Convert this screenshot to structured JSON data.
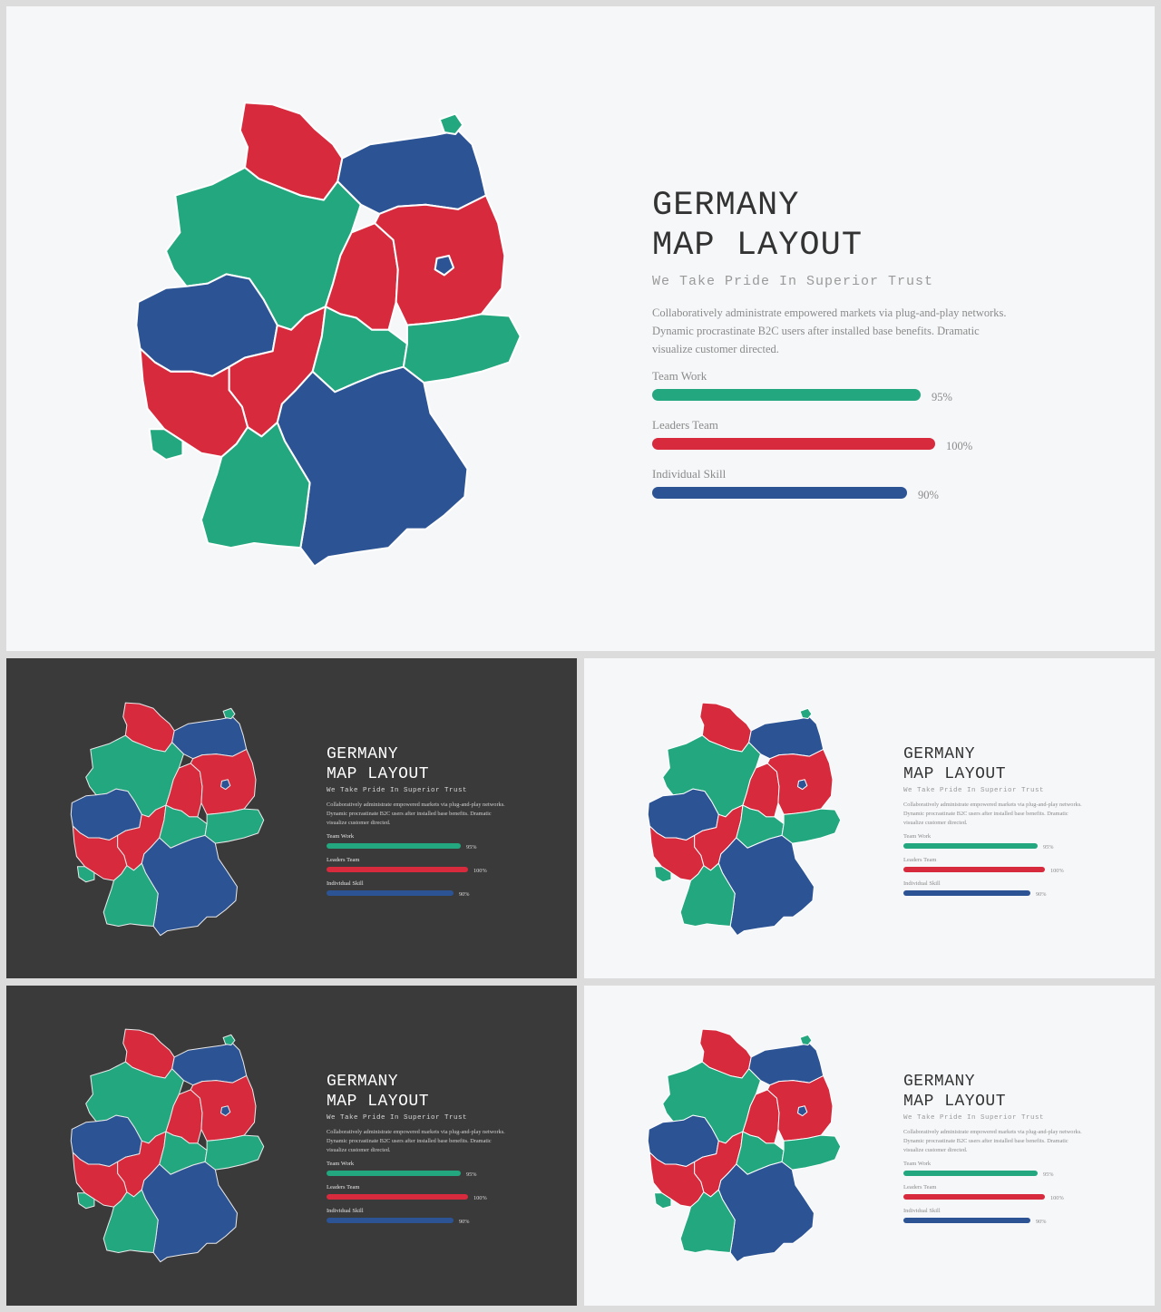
{
  "slide": {
    "title": "GERMANY\nMAP LAYOUT",
    "subtitle": "We Take Pride In Superior Trust",
    "description": "Collaboratively administrate empowered  markets via plug-and-play  networks. Dynamic procrastinate B2C users after installed base benefits. Dramatic visualize customer  directed.",
    "skills": [
      {
        "label": "Team Work",
        "value": "95%",
        "fraction": 0.95,
        "color": "#22a77f"
      },
      {
        "label": "Leaders Team",
        "value": "100%",
        "fraction": 1.0,
        "color": "#d72a3d"
      },
      {
        "label": "Individual Skill",
        "value": "90%",
        "fraction": 0.9,
        "color": "#2c5394"
      }
    ]
  },
  "colors": {
    "green": "#22a77f",
    "red": "#d72a3d",
    "blue": "#2c5394",
    "light_background": "#f6f7f9",
    "dark_background": "#3a3a3a"
  }
}
